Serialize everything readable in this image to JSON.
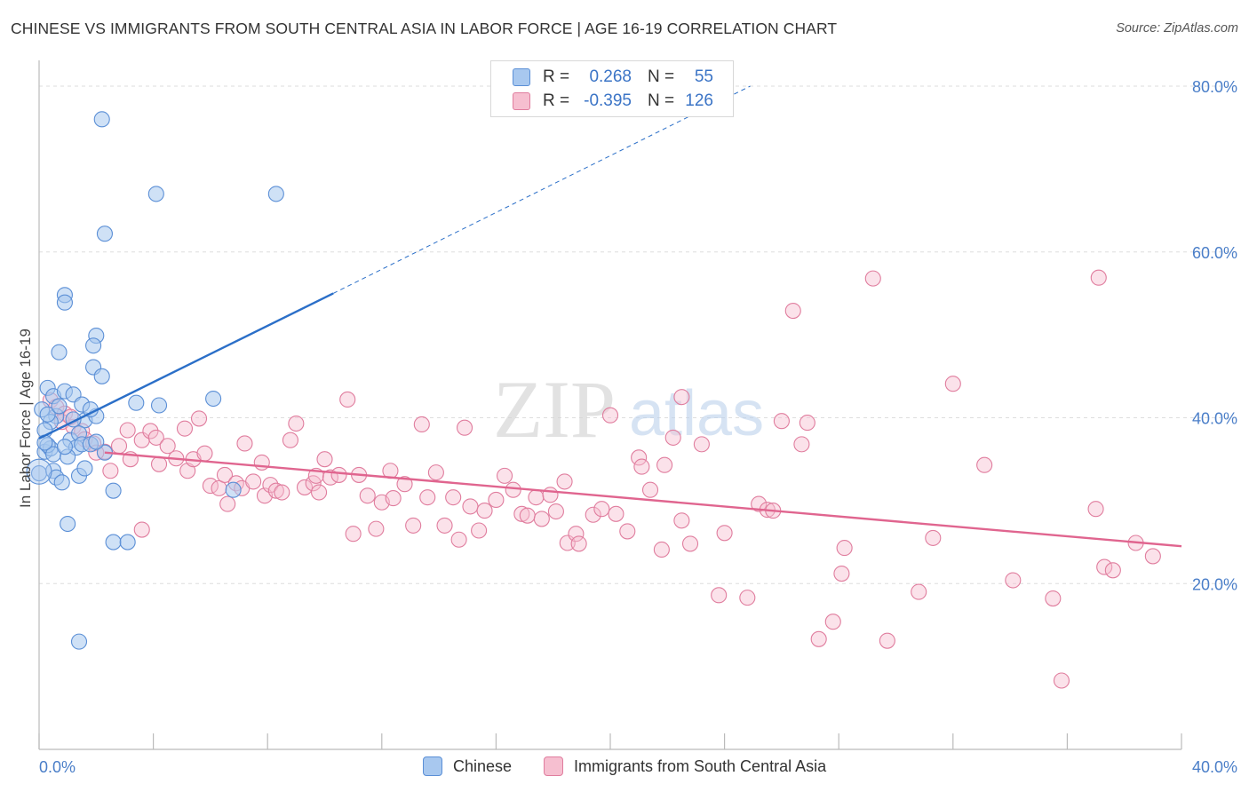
{
  "title": "CHINESE VS IMMIGRANTS FROM SOUTH CENTRAL ASIA IN LABOR FORCE | AGE 16-19 CORRELATION CHART",
  "source": "Source: ZipAtlas.com",
  "watermark": {
    "part1": "ZIP",
    "part2": "atlas"
  },
  "legend": {
    "rows": [
      {
        "series": "Chinese",
        "r_label": "R =",
        "r_value": "0.268",
        "n_label": "N =",
        "n_value": "55"
      },
      {
        "series": "Immigrants from South Central Asia",
        "r_label": "R =",
        "r_value": "-0.395",
        "n_label": "N =",
        "n_value": "126"
      }
    ]
  },
  "colors": {
    "chinese_fill": "#a8c8ef",
    "chinese_stroke": "#5b8fd6",
    "chinese_line": "#2b6fc8",
    "immig_fill": "#f6bfd0",
    "immig_stroke": "#e07d9e",
    "immig_line": "#e0658f",
    "grid": "#dddddd",
    "tick_text": "#4a7ec8"
  },
  "chart_data": {
    "type": "scatter",
    "title": "CHINESE VS IMMIGRANTS FROM SOUTH CENTRAL ASIA IN LABOR FORCE | AGE 16-19 CORRELATION CHART",
    "xlabel": "",
    "ylabel": "In Labor Force | Age 16-19",
    "xlim": [
      0,
      40
    ],
    "ylim": [
      0,
      82
    ],
    "x_ticks": [
      "0.0%",
      "40.0%"
    ],
    "y_ticks": [
      {
        "value": 20,
        "label": "20.0%"
      },
      {
        "value": 40,
        "label": "40.0%"
      },
      {
        "value": 60,
        "label": "60.0%"
      },
      {
        "value": 80,
        "label": "80.0%"
      }
    ],
    "grid": true,
    "legend_position": "top-center",
    "series": [
      {
        "name": "Chinese",
        "trendline": {
          "x": [
            0.0,
            10.3
          ],
          "y": [
            37.5,
            55.0
          ],
          "dashed_extension_to": [
            24.9,
            80.0
          ]
        },
        "points": [
          [
            2.2,
            76
          ],
          [
            4.1,
            67
          ],
          [
            8.3,
            67
          ],
          [
            2.3,
            62.2
          ],
          [
            0.9,
            54.8
          ],
          [
            0.9,
            53.9
          ],
          [
            0.7,
            47.9
          ],
          [
            2.0,
            49.9
          ],
          [
            1.9,
            48.7
          ],
          [
            1.9,
            46.1
          ],
          [
            2.2,
            45.0
          ],
          [
            3.4,
            41.8
          ],
          [
            4.2,
            41.5
          ],
          [
            6.1,
            42.3
          ],
          [
            0.3,
            43.6
          ],
          [
            0.5,
            42.6
          ],
          [
            0.9,
            43.2
          ],
          [
            1.2,
            42.8
          ],
          [
            1.5,
            41.6
          ],
          [
            1.6,
            39.7
          ],
          [
            2.0,
            40.2
          ],
          [
            1.8,
            41.0
          ],
          [
            0.1,
            41.0
          ],
          [
            0.6,
            40.2
          ],
          [
            0.4,
            39.5
          ],
          [
            0.2,
            38.5
          ],
          [
            1.1,
            37.3
          ],
          [
            1.4,
            38.1
          ],
          [
            1.3,
            36.4
          ],
          [
            1.5,
            36.8
          ],
          [
            0.2,
            35.9
          ],
          [
            0.4,
            36.3
          ],
          [
            0.3,
            36.7
          ],
          [
            0.5,
            35.6
          ],
          [
            1.0,
            35.3
          ],
          [
            1.8,
            36.8
          ],
          [
            2.3,
            35.8
          ],
          [
            0.0,
            33.3
          ],
          [
            0.5,
            33.6
          ],
          [
            0.6,
            32.8
          ],
          [
            0.8,
            32.2
          ],
          [
            1.4,
            33.0
          ],
          [
            1.6,
            33.9
          ],
          [
            2.6,
            31.2
          ],
          [
            6.8,
            31.3
          ],
          [
            2.6,
            25.0
          ],
          [
            3.1,
            25.0
          ],
          [
            1.0,
            27.2
          ],
          [
            1.4,
            13.0
          ],
          [
            0.3,
            40.4
          ],
          [
            0.7,
            41.4
          ],
          [
            1.2,
            39.8
          ],
          [
            0.9,
            36.5
          ],
          [
            0.2,
            37.0
          ],
          [
            2.0,
            37.1
          ]
        ]
      },
      {
        "name": "Immigrants from South Central Asia",
        "trendline": {
          "x": [
            2.3,
            40.0
          ],
          "y": [
            35.8,
            24.5
          ]
        },
        "points": [
          [
            0.4,
            42.1
          ],
          [
            0.6,
            41.3
          ],
          [
            0.9,
            40.5
          ],
          [
            0.8,
            39.5
          ],
          [
            1.2,
            38.9
          ],
          [
            1.5,
            38.4
          ],
          [
            1.6,
            37.4
          ],
          [
            1.9,
            36.9
          ],
          [
            2.3,
            35.9
          ],
          [
            2.5,
            33.6
          ],
          [
            2.8,
            36.6
          ],
          [
            3.2,
            35.0
          ],
          [
            3.1,
            38.5
          ],
          [
            3.6,
            26.5
          ],
          [
            3.6,
            37.3
          ],
          [
            3.9,
            38.4
          ],
          [
            4.1,
            37.6
          ],
          [
            4.2,
            34.4
          ],
          [
            4.5,
            36.6
          ],
          [
            4.8,
            35.1
          ],
          [
            5.1,
            38.7
          ],
          [
            5.2,
            33.6
          ],
          [
            5.4,
            35.0
          ],
          [
            5.6,
            39.9
          ],
          [
            5.8,
            35.7
          ],
          [
            6.0,
            31.8
          ],
          [
            6.3,
            31.5
          ],
          [
            6.5,
            33.1
          ],
          [
            6.6,
            29.6
          ],
          [
            6.9,
            32.1
          ],
          [
            7.1,
            31.5
          ],
          [
            7.2,
            36.9
          ],
          [
            7.5,
            32.3
          ],
          [
            7.8,
            34.6
          ],
          [
            7.9,
            30.6
          ],
          [
            8.1,
            31.9
          ],
          [
            8.3,
            31.2
          ],
          [
            8.5,
            31.0
          ],
          [
            8.8,
            37.3
          ],
          [
            9.0,
            39.3
          ],
          [
            9.3,
            31.6
          ],
          [
            9.6,
            32.1
          ],
          [
            9.7,
            33.0
          ],
          [
            9.8,
            31.0
          ],
          [
            10.0,
            35.0
          ],
          [
            10.2,
            32.8
          ],
          [
            10.5,
            33.1
          ],
          [
            10.8,
            42.2
          ],
          [
            11.2,
            33.1
          ],
          [
            11.0,
            26.0
          ],
          [
            11.5,
            30.6
          ],
          [
            11.8,
            26.6
          ],
          [
            12.0,
            29.8
          ],
          [
            12.3,
            33.6
          ],
          [
            12.4,
            30.3
          ],
          [
            12.8,
            32.0
          ],
          [
            13.1,
            27.0
          ],
          [
            13.4,
            39.2
          ],
          [
            13.6,
            30.4
          ],
          [
            13.9,
            33.4
          ],
          [
            14.2,
            27.0
          ],
          [
            14.5,
            30.4
          ],
          [
            14.7,
            25.3
          ],
          [
            14.9,
            38.8
          ],
          [
            15.1,
            29.3
          ],
          [
            15.4,
            26.4
          ],
          [
            15.6,
            28.8
          ],
          [
            16.0,
            30.1
          ],
          [
            16.3,
            33.0
          ],
          [
            16.6,
            31.3
          ],
          [
            16.9,
            28.4
          ],
          [
            17.1,
            28.2
          ],
          [
            17.4,
            30.4
          ],
          [
            17.6,
            27.8
          ],
          [
            17.9,
            30.7
          ],
          [
            18.1,
            28.7
          ],
          [
            18.4,
            32.3
          ],
          [
            18.5,
            24.9
          ],
          [
            18.8,
            26.0
          ],
          [
            18.9,
            24.8
          ],
          [
            19.4,
            28.3
          ],
          [
            19.7,
            29.0
          ],
          [
            20.0,
            40.3
          ],
          [
            20.2,
            28.4
          ],
          [
            20.6,
            26.3
          ],
          [
            21.0,
            35.2
          ],
          [
            21.1,
            34.1
          ],
          [
            21.4,
            31.3
          ],
          [
            21.8,
            24.1
          ],
          [
            21.9,
            34.3
          ],
          [
            22.2,
            37.6
          ],
          [
            22.5,
            27.6
          ],
          [
            22.5,
            42.5
          ],
          [
            22.8,
            24.8
          ],
          [
            23.2,
            36.8
          ],
          [
            23.8,
            18.6
          ],
          [
            24.0,
            26.1
          ],
          [
            24.8,
            18.3
          ],
          [
            25.2,
            29.6
          ],
          [
            25.5,
            28.9
          ],
          [
            25.7,
            28.8
          ],
          [
            26.0,
            39.6
          ],
          [
            26.4,
            52.9
          ],
          [
            26.7,
            36.8
          ],
          [
            26.9,
            39.4
          ],
          [
            27.3,
            13.3
          ],
          [
            27.8,
            15.4
          ],
          [
            28.1,
            21.2
          ],
          [
            28.2,
            24.3
          ],
          [
            29.2,
            56.8
          ],
          [
            29.7,
            13.1
          ],
          [
            30.8,
            19.0
          ],
          [
            31.3,
            25.5
          ],
          [
            32.0,
            44.1
          ],
          [
            33.1,
            34.3
          ],
          [
            34.1,
            20.4
          ],
          [
            35.5,
            18.2
          ],
          [
            35.8,
            8.3
          ],
          [
            37.0,
            29.0
          ],
          [
            37.3,
            22.0
          ],
          [
            37.6,
            21.6
          ],
          [
            38.4,
            24.9
          ],
          [
            39.0,
            23.3
          ],
          [
            37.1,
            56.9
          ],
          [
            2.0,
            35.8
          ],
          [
            1.1,
            40.1
          ]
        ]
      }
    ]
  },
  "bottom_legend": [
    {
      "label": "Chinese"
    },
    {
      "label": "Immigrants from South Central Asia"
    }
  ]
}
